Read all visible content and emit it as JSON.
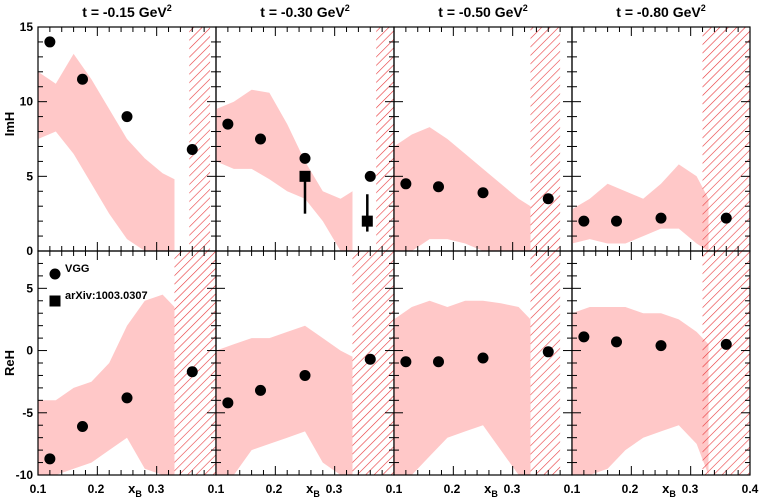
{
  "chart_data": {
    "type": "scatter",
    "columns": [
      {
        "t_value": "-0.15",
        "title_prefix": "t = ",
        "title_unit": " GeV",
        "title_sup": "2"
      },
      {
        "t_value": "-0.30",
        "title_prefix": "t = ",
        "title_unit": " GeV",
        "title_sup": "2"
      },
      {
        "t_value": "-0.50",
        "title_prefix": "t = ",
        "title_unit": " GeV",
        "title_sup": "2"
      },
      {
        "t_value": "-0.80",
        "title_prefix": "t = ",
        "title_unit": " GeV",
        "title_sup": "2"
      }
    ],
    "rows": [
      {
        "ylabel": "ImH",
        "ylim": [
          0,
          15
        ],
        "yticks": [
          0,
          5,
          10,
          15
        ]
      },
      {
        "ylabel": "ReH",
        "ylim": [
          -10,
          8
        ],
        "yticks": [
          -10,
          -5,
          0,
          5
        ]
      }
    ],
    "xlabel_main": "x",
    "xlabel_sub": "B",
    "xlim": [
      0.1,
      0.4
    ],
    "xtick_labels": [
      "0.1",
      "0.2",
      "0.3",
      "0.1",
      "0.2",
      "0.3",
      "0.1",
      "0.2",
      "0.3",
      "0.1",
      "0.2",
      "0.3",
      "0.4"
    ],
    "legend": [
      {
        "name": "VGG",
        "marker": "circle"
      },
      {
        "name": "arXiv:1003.0307",
        "marker": "square"
      }
    ],
    "colors": {
      "band": "#ffc8c8",
      "hatch": "#e8383c",
      "marker": "#000000"
    },
    "panels": [
      {
        "row": 0,
        "col": 0,
        "band": {
          "x": [
            0.1,
            0.13,
            0.16,
            0.19,
            0.22,
            0.25,
            0.28,
            0.31,
            0.33
          ],
          "upper": [
            12.0,
            11.2,
            13.2,
            11.5,
            9.5,
            7.5,
            6.2,
            5.2,
            4.8
          ],
          "lower": [
            7.5,
            8.0,
            6.5,
            4.5,
            2.5,
            0.8,
            0.0,
            0.0,
            0.0
          ]
        },
        "hatch": {
          "x": [
            0.355,
            0.39
          ],
          "y": [
            0,
            15
          ]
        },
        "vgg": [
          {
            "x": 0.12,
            "y": 14.0
          },
          {
            "x": 0.175,
            "y": 11.5
          },
          {
            "x": 0.25,
            "y": 9.0
          },
          {
            "x": 0.36,
            "y": 6.8
          }
        ],
        "arxiv": []
      },
      {
        "row": 0,
        "col": 1,
        "band": {
          "x": [
            0.1,
            0.13,
            0.16,
            0.19,
            0.22,
            0.25,
            0.28,
            0.31,
            0.33
          ],
          "upper": [
            9.5,
            10.0,
            10.8,
            10.6,
            8.5,
            6.0,
            4.0,
            3.5,
            4.0
          ],
          "lower": [
            6.0,
            5.5,
            5.5,
            4.8,
            4.0,
            3.5,
            2.0,
            0.0,
            0.0
          ]
        },
        "hatch": {
          "x": [
            0.37,
            0.4
          ],
          "y": [
            0,
            15
          ]
        },
        "vgg": [
          {
            "x": 0.12,
            "y": 8.5
          },
          {
            "x": 0.175,
            "y": 7.5
          },
          {
            "x": 0.25,
            "y": 6.2
          },
          {
            "x": 0.36,
            "y": 5.0
          }
        ],
        "arxiv": [
          {
            "x": 0.25,
            "y": 5.0,
            "ylow": 2.5,
            "yhigh": 5.0
          },
          {
            "x": 0.355,
            "y": 2.0,
            "ylow": 1.3,
            "yhigh": 3.8
          }
        ]
      },
      {
        "row": 0,
        "col": 2,
        "band": {
          "x": [
            0.1,
            0.13,
            0.16,
            0.19,
            0.22,
            0.25,
            0.28,
            0.31,
            0.33
          ],
          "upper": [
            7.0,
            7.8,
            8.3,
            7.5,
            6.5,
            5.5,
            4.5,
            3.5,
            3.0
          ],
          "lower": [
            0.0,
            0.0,
            0.8,
            0.8,
            0.5,
            0.0,
            0.0,
            0.0,
            0.0
          ]
        },
        "hatch": {
          "x": [
            0.33,
            0.38
          ],
          "y": [
            0,
            15
          ]
        },
        "vgg": [
          {
            "x": 0.12,
            "y": 4.5
          },
          {
            "x": 0.175,
            "y": 4.3
          },
          {
            "x": 0.25,
            "y": 3.9
          },
          {
            "x": 0.36,
            "y": 3.5
          }
        ],
        "arxiv": []
      },
      {
        "row": 0,
        "col": 3,
        "band": {
          "x": [
            0.1,
            0.13,
            0.16,
            0.19,
            0.22,
            0.25,
            0.28,
            0.31,
            0.33
          ],
          "upper": [
            2.8,
            3.5,
            4.5,
            4.0,
            3.5,
            4.5,
            5.8,
            5.0,
            3.5
          ],
          "lower": [
            0.5,
            0.8,
            0.5,
            0.5,
            1.0,
            1.5,
            1.5,
            0.5,
            0.0
          ]
        },
        "hatch": {
          "x": [
            0.32,
            0.4
          ],
          "y": [
            0,
            15
          ]
        },
        "vgg": [
          {
            "x": 0.12,
            "y": 2.0
          },
          {
            "x": 0.175,
            "y": 2.0
          },
          {
            "x": 0.25,
            "y": 2.2
          },
          {
            "x": 0.36,
            "y": 2.2
          }
        ],
        "arxiv": []
      },
      {
        "row": 1,
        "col": 0,
        "band": {
          "x": [
            0.1,
            0.13,
            0.16,
            0.19,
            0.22,
            0.25,
            0.28,
            0.31,
            0.33
          ],
          "upper": [
            -4.0,
            -4.0,
            -3.0,
            -2.5,
            -1.0,
            2.0,
            4.0,
            4.5,
            3.5
          ],
          "lower": [
            -10.0,
            -10.0,
            -9.5,
            -9.0,
            -8.0,
            -7.0,
            -9.5,
            -10.0,
            -10.0
          ]
        },
        "hatch": {
          "x": [
            0.33,
            0.4
          ],
          "y": [
            -10,
            8
          ]
        },
        "vgg": [
          {
            "x": 0.12,
            "y": -8.7
          },
          {
            "x": 0.175,
            "y": -6.1
          },
          {
            "x": 0.25,
            "y": -3.8
          },
          {
            "x": 0.36,
            "y": -1.7
          }
        ],
        "arxiv": []
      },
      {
        "row": 1,
        "col": 1,
        "band": {
          "x": [
            0.1,
            0.13,
            0.16,
            0.19,
            0.22,
            0.25,
            0.28,
            0.31,
            0.33
          ],
          "upper": [
            0.0,
            0.5,
            1.0,
            1.0,
            1.5,
            2.0,
            1.0,
            0.0,
            -0.5
          ],
          "lower": [
            -10.0,
            -10.0,
            -8.0,
            -7.5,
            -7.0,
            -6.5,
            -9.0,
            -10.0,
            -10.0
          ]
        },
        "hatch": {
          "x": [
            0.33,
            0.4
          ],
          "y": [
            -10,
            8
          ]
        },
        "vgg": [
          {
            "x": 0.12,
            "y": -4.2
          },
          {
            "x": 0.175,
            "y": -3.2
          },
          {
            "x": 0.25,
            "y": -2.0
          },
          {
            "x": 0.36,
            "y": -0.7
          }
        ],
        "arxiv": []
      },
      {
        "row": 1,
        "col": 2,
        "band": {
          "x": [
            0.1,
            0.13,
            0.16,
            0.19,
            0.22,
            0.25,
            0.28,
            0.31,
            0.33
          ],
          "upper": [
            2.5,
            3.5,
            4.0,
            3.5,
            4.0,
            4.0,
            3.8,
            3.5,
            2.5
          ],
          "lower": [
            -10.0,
            -10.0,
            -8.5,
            -7.0,
            -6.5,
            -6.0,
            -8.0,
            -10.0,
            -10.0
          ]
        },
        "hatch": {
          "x": [
            0.33,
            0.38
          ],
          "y": [
            -10,
            8
          ]
        },
        "vgg": [
          {
            "x": 0.12,
            "y": -0.9
          },
          {
            "x": 0.175,
            "y": -0.9
          },
          {
            "x": 0.25,
            "y": -0.6
          },
          {
            "x": 0.36,
            "y": -0.1
          }
        ],
        "arxiv": []
      },
      {
        "row": 1,
        "col": 3,
        "band": {
          "x": [
            0.1,
            0.13,
            0.16,
            0.19,
            0.22,
            0.25,
            0.28,
            0.31,
            0.33
          ],
          "upper": [
            3.0,
            3.5,
            3.5,
            3.5,
            3.0,
            3.0,
            2.5,
            1.5,
            0.5
          ],
          "lower": [
            -10.0,
            -10.0,
            -9.5,
            -8.0,
            -7.0,
            -6.5,
            -6.0,
            -7.5,
            -10.0
          ]
        },
        "hatch": {
          "x": [
            0.32,
            0.4
          ],
          "y": [
            -10,
            8
          ]
        },
        "vgg": [
          {
            "x": 0.12,
            "y": 1.1
          },
          {
            "x": 0.175,
            "y": 0.7
          },
          {
            "x": 0.25,
            "y": 0.4
          },
          {
            "x": 0.36,
            "y": 0.5
          }
        ],
        "arxiv": []
      }
    ]
  }
}
